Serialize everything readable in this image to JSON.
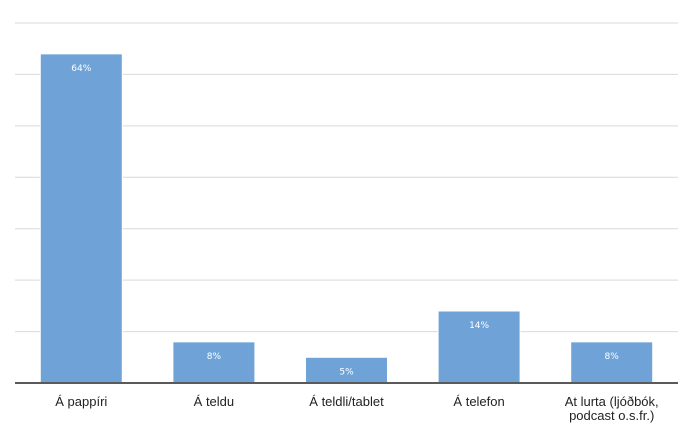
{
  "chart_data": {
    "type": "bar",
    "categories": [
      "Á pappíri",
      "Á teldu",
      "Á teldli/tablet",
      "Á telefon",
      "At lurta (ljóðbók, podcast o.s.fr.)"
    ],
    "category_label_lines": [
      [
        "Á pappíri"
      ],
      [
        "Á teldu"
      ],
      [
        "Á teldli/tablet"
      ],
      [
        "Á telefon"
      ],
      [
        "At lurta (ljóðbók,",
        "podcast o.s.fr.)"
      ]
    ],
    "values": [
      64,
      8,
      5,
      14,
      8
    ],
    "value_labels": [
      "64%",
      "8%",
      "5%",
      "14%",
      "8%"
    ],
    "unit": "%",
    "ylim": [
      0,
      70
    ],
    "ytick_step": 10,
    "grid": true,
    "colors": {
      "bar": "#6fa3d8",
      "grid": "#d9d9d9",
      "axis": "#5a5a5a"
    }
  }
}
